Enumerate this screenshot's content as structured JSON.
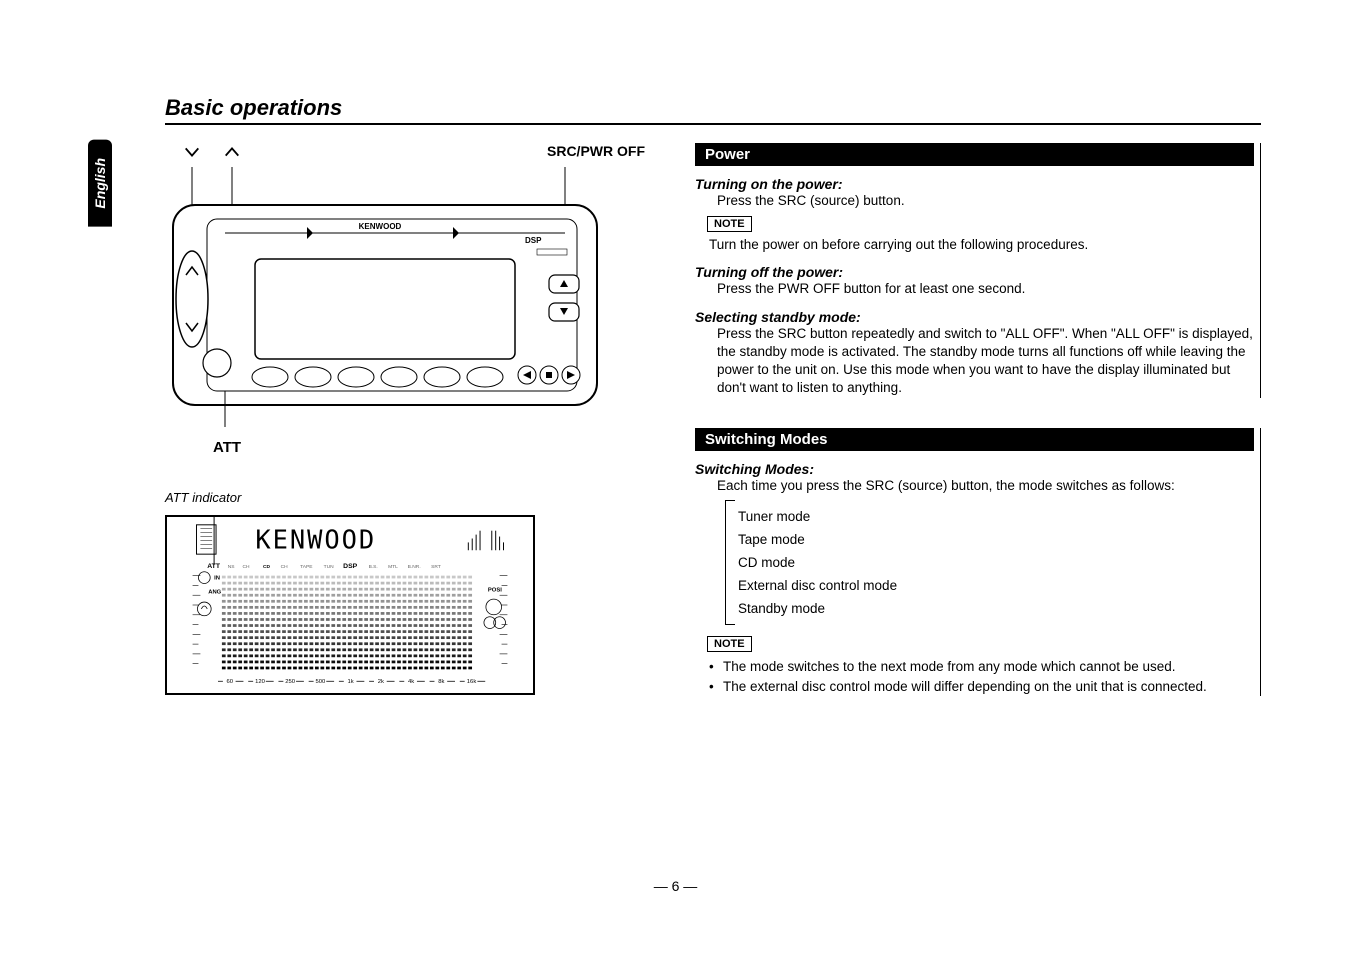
{
  "language_tab": "English",
  "page_title": "Basic operations",
  "page_number": "— 6 —",
  "labels": {
    "src_pwr_off": "SRC/PWR OFF",
    "att": "ATT",
    "att_indicator": "ATT indicator",
    "brand": "KENWOOD",
    "dsp": "DSP"
  },
  "sections": {
    "power": {
      "heading": "Power",
      "turn_on_sub": "Turning on the power:",
      "turn_on_body": "Press the SRC (source) button.",
      "note_label": "NOTE",
      "note_body": "Turn the power on before carrying out the following procedures.",
      "turn_off_sub": "Turning off the power:",
      "turn_off_body": "Press the PWR OFF button for at least one second.",
      "standby_sub": "Selecting standby mode:",
      "standby_body": "Press the SRC button repeatedly and switch to \"ALL OFF\". When \"ALL OFF\" is displayed, the standby mode is activated. The standby mode turns all functions off while leaving the power to the unit on. Use this mode when you want to have the display illuminated but don't want to listen to anything."
    },
    "switching": {
      "heading": "Switching Modes",
      "sub": "Switching Modes:",
      "body": "Each time you press the SRC (source) button, the mode switches as follows:",
      "modes": [
        "Tuner mode",
        "Tape mode",
        "CD mode",
        "External disc control mode",
        "Standby mode"
      ],
      "note_label": "NOTE",
      "notes": [
        "The mode switches to the next mode from any mode which cannot be used.",
        "The external disc control mode will differ depending on the unit that is connected."
      ]
    }
  },
  "lcd": {
    "freq_ticks": [
      "60",
      "120",
      "250",
      "500",
      "1k",
      "2k",
      "4k",
      "8k",
      "16k"
    ],
    "indicators": [
      "ATT",
      "IN",
      "ANG",
      "CH",
      "CD",
      "CH",
      "TAPE",
      "TUN",
      "DSP",
      "B.S.",
      "MTL",
      "B.NR.",
      "SRT"
    ],
    "posi": "POSI"
  }
}
